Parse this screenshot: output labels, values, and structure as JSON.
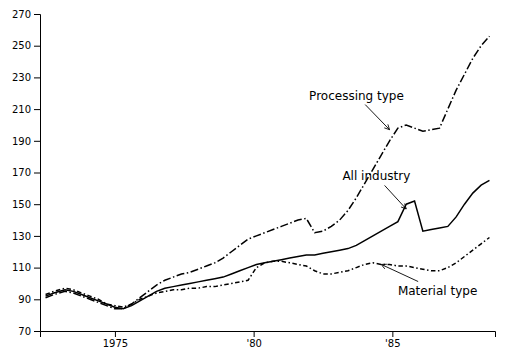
{
  "chart_data": {
    "type": "line",
    "x": [
      1972.5,
      1972.8,
      1973.2,
      1973.5,
      1973.8,
      1974.1,
      1974.4,
      1974.7,
      1975.0,
      1975.3,
      1975.6,
      1975.9,
      1976.2,
      1976.5,
      1976.8,
      1977.1,
      1977.4,
      1977.7,
      1978.0,
      1978.3,
      1978.6,
      1978.9,
      1979.2,
      1979.5,
      1979.8,
      1980.1,
      1980.4,
      1980.7,
      1981.0,
      1981.3,
      1981.6,
      1981.9,
      1982.2,
      1982.5,
      1982.8,
      1983.1,
      1983.4,
      1983.7,
      1984.0,
      1984.3,
      1984.6,
      1984.9,
      1985.2,
      1985.5,
      1985.8,
      1986.1,
      1986.4,
      1986.7,
      1987.0,
      1987.3,
      1987.6,
      1987.9,
      1988.2,
      1988.5
    ],
    "series": [
      {
        "color": "#000000",
        "line_style": "solid",
        "values": [
          92,
          94,
          96,
          95,
          93,
          91,
          89,
          87,
          85,
          84,
          86,
          89,
          92,
          95,
          97,
          98,
          99,
          100,
          101,
          102,
          103,
          104,
          106,
          108,
          110,
          112,
          113,
          114,
          115,
          116,
          117,
          118,
          118,
          119,
          120,
          121,
          122,
          124,
          127,
          130,
          133,
          136,
          139,
          150,
          152,
          133,
          134,
          135,
          136,
          142,
          150,
          157,
          162,
          165
        ]
      },
      {
        "color": "#000000",
        "line_style": "long-dash-dot",
        "values": [
          91,
          93,
          95,
          94,
          92,
          90,
          88,
          86,
          84,
          84,
          87,
          91,
          95,
          99,
          102,
          104,
          106,
          107,
          109,
          111,
          113,
          116,
          120,
          124,
          128,
          130,
          132,
          134,
          136,
          138,
          140,
          141,
          132,
          133,
          136,
          140,
          146,
          154,
          163,
          172,
          181,
          190,
          198,
          200,
          198,
          196,
          197,
          198,
          210,
          222,
          232,
          242,
          250,
          256
        ]
      },
      {
        "color": "#000000",
        "line_style": "dash-dot",
        "values": [
          93,
          95,
          97,
          96,
          94,
          92,
          90,
          87,
          86,
          85,
          87,
          90,
          92,
          94,
          95,
          96,
          96,
          97,
          97,
          98,
          98,
          99,
          100,
          101,
          102,
          110,
          113,
          114,
          114,
          113,
          112,
          111,
          108,
          106,
          106,
          107,
          108,
          110,
          112,
          113,
          112,
          112,
          111,
          111,
          110,
          109,
          108,
          108,
          110,
          113,
          117,
          121,
          125,
          129
        ]
      }
    ],
    "xlim": [
      1972.3,
      1988.7
    ],
    "xticks": [
      1975,
      {
        "value": 1980,
        "label": "'80"
      },
      {
        "value": 1985,
        "label": "'85"
      }
    ],
    "ylim": [
      70,
      270
    ],
    "yticks": [
      70,
      90,
      110,
      130,
      150,
      170,
      190,
      210,
      230,
      250,
      270
    ],
    "annotations": [
      {
        "text": "Processing type",
        "x": 1984.9,
        "y": 197,
        "text_x": 1982.0,
        "text_y": 216
      },
      {
        "text": "All industry",
        "x": 1985.5,
        "y": 147,
        "text_x": 1983.2,
        "text_y": 165
      },
      {
        "text": "Material type",
        "x": 1984.6,
        "y": 112,
        "text_x": 1985.2,
        "text_y": 93
      }
    ]
  }
}
